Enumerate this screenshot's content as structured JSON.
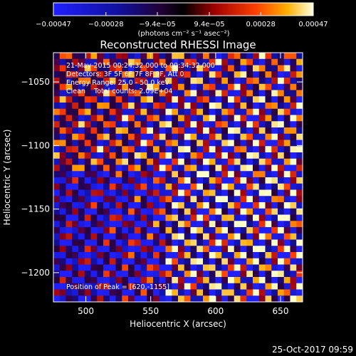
{
  "chart_data": {
    "type": "heatmap",
    "title": "Reconstructed RHESSI Image",
    "xlabel": "Heliocentric X (arcsec)",
    "ylabel": "Heliocentric Y (arcsec)",
    "xlim": [
      475,
      667
    ],
    "ylim": [
      -1223,
      -1027
    ],
    "xticks": [
      500,
      550,
      600,
      650
    ],
    "xtick_labels": [
      "500",
      "550",
      "600",
      "650"
    ],
    "yticks": [
      -1050,
      -1100,
      -1150,
      -1200
    ],
    "ytick_labels": [
      "−1050",
      "−1100",
      "−1150",
      "−1200"
    ],
    "colorbar": {
      "range": [
        -0.00047,
        0.00047
      ],
      "tick_values": [
        -0.00047,
        -0.00028,
        -9.4e-05,
        9.4e-05,
        0.00028,
        0.00047
      ],
      "tick_labels": [
        "−0.00047",
        "−0.00028",
        "−9.4e−05",
        "9.4e−05",
        "0.00028",
        "0.00047"
      ],
      "units": "(photons cm⁻² s⁻¹ asec⁻²)"
    },
    "annotations": [
      "21-May-2015 00:24:32.000 to 00:34:32.000",
      "Detectors: 3F 5F 6F 7F 8F 9F, Att 0",
      "Energy Range: 25.0 - 50.0 keV",
      "Clean    Total counts: 2.09E+04"
    ],
    "peak_label": "Position of Peak = [620,-1155]",
    "peak": [
      620,
      -1155
    ],
    "grid": false
  },
  "footer": {
    "timestamp": "25-Oct-2017 09:59"
  }
}
